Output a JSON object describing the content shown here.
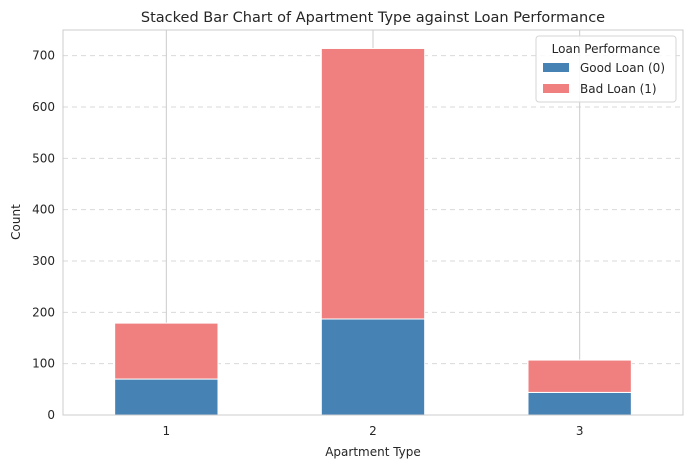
{
  "chart_data": {
    "type": "bar",
    "stacked": true,
    "title": "Stacked Bar Chart of Apartment Type against Loan Performance",
    "xlabel": "Apartment Type",
    "ylabel": "Count",
    "categories": [
      "1",
      "2",
      "3"
    ],
    "ylim": [
      0,
      750
    ],
    "yticks": [
      0,
      100,
      200,
      300,
      400,
      500,
      600,
      700
    ],
    "grid": "y-dashed",
    "legend": {
      "title": "Loan Performance",
      "placement": "top-right"
    },
    "series": [
      {
        "name": "Good Loan (0)",
        "color": "#4682b4",
        "values": [
          70,
          187,
          44
        ]
      },
      {
        "name": "Bad Loan (1)",
        "color": "#f08080",
        "values": [
          109,
          527,
          63
        ]
      }
    ]
  }
}
